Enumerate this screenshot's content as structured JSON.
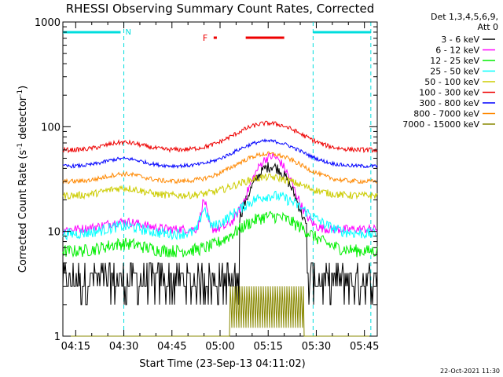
{
  "chart_data": {
    "type": "line",
    "title": "RHESSI Observing Summary Count Rates, Corrected",
    "xlabel": "Start Time (23-Sep-13 04:11:02)",
    "ylabel": "Corrected Count Rate (s⁻¹ detector⁻¹)",
    "ylabel_parts": {
      "main": "Corrected Count Rate (s",
      "sup1": "-1",
      "mid": " detector",
      "sup2": "-1",
      "end": ")"
    },
    "y_scale": "log",
    "ylim": [
      1,
      1000
    ],
    "xlim_minutes": [
      "04:11",
      "05:49"
    ],
    "x_ticks": [
      "04:15",
      "04:30",
      "04:45",
      "05:00",
      "05:15",
      "05:30",
      "05:45"
    ],
    "y_ticks": [
      "1",
      "10",
      "100",
      "1000"
    ],
    "grid": false,
    "legend_placement": "right",
    "legend_header": [
      "Det 1,3,4,5,6,9,",
      "Att 0"
    ],
    "timestamp": "22-Oct-2021 11:30",
    "flag_markers": {
      "night_bars": [
        {
          "start": "04:11",
          "end": "04:29"
        },
        {
          "start": "05:29",
          "end": "05:47"
        }
      ],
      "night_dashed_lines": [
        "04:30",
        "05:29",
        "05:47"
      ],
      "night_label": "N",
      "flare_bars": [
        {
          "start": "04:58",
          "end": "04:59"
        },
        {
          "start": "05:08",
          "end": "05:20"
        }
      ],
      "flare_label": "F",
      "night_color": "#00dddd",
      "flare_color": "#ee0000"
    },
    "series": [
      {
        "name": "3 - 6 keV",
        "color": "#000000",
        "baseline": 3.8,
        "peak_time": "05:16",
        "peak": 42
      },
      {
        "name": "6 - 12 keV",
        "color": "#ff00ff",
        "baseline": 10.5,
        "peak_time": "05:16",
        "peak": 52
      },
      {
        "name": "12 - 25 keV",
        "color": "#00ee00",
        "baseline": 6.5,
        "peak_time": "05:16",
        "peak": 14
      },
      {
        "name": "25 - 50 keV",
        "color": "#00ffff",
        "baseline": 9.5,
        "peak_time": "05:16",
        "peak": 22
      },
      {
        "name": "50 - 100 keV",
        "color": "#cccc00",
        "baseline": 22,
        "peak_time": "05:15",
        "peak": 33
      },
      {
        "name": "100 - 300 keV",
        "color": "#ee0000",
        "baseline": 60,
        "peak_time": "05:15",
        "peak": 108
      },
      {
        "name": "300 - 800 keV",
        "color": "#0000ff",
        "baseline": 42,
        "peak_time": "05:15",
        "peak": 73
      },
      {
        "name": "800 - 7000 keV",
        "color": "#ff8800",
        "baseline": 30,
        "peak_time": "05:15",
        "peak": 55
      },
      {
        "name": "7000 - 15000 keV",
        "color": "#888800",
        "baseline": 1.0,
        "peak_time": "05:15",
        "peak": 3
      }
    ]
  }
}
